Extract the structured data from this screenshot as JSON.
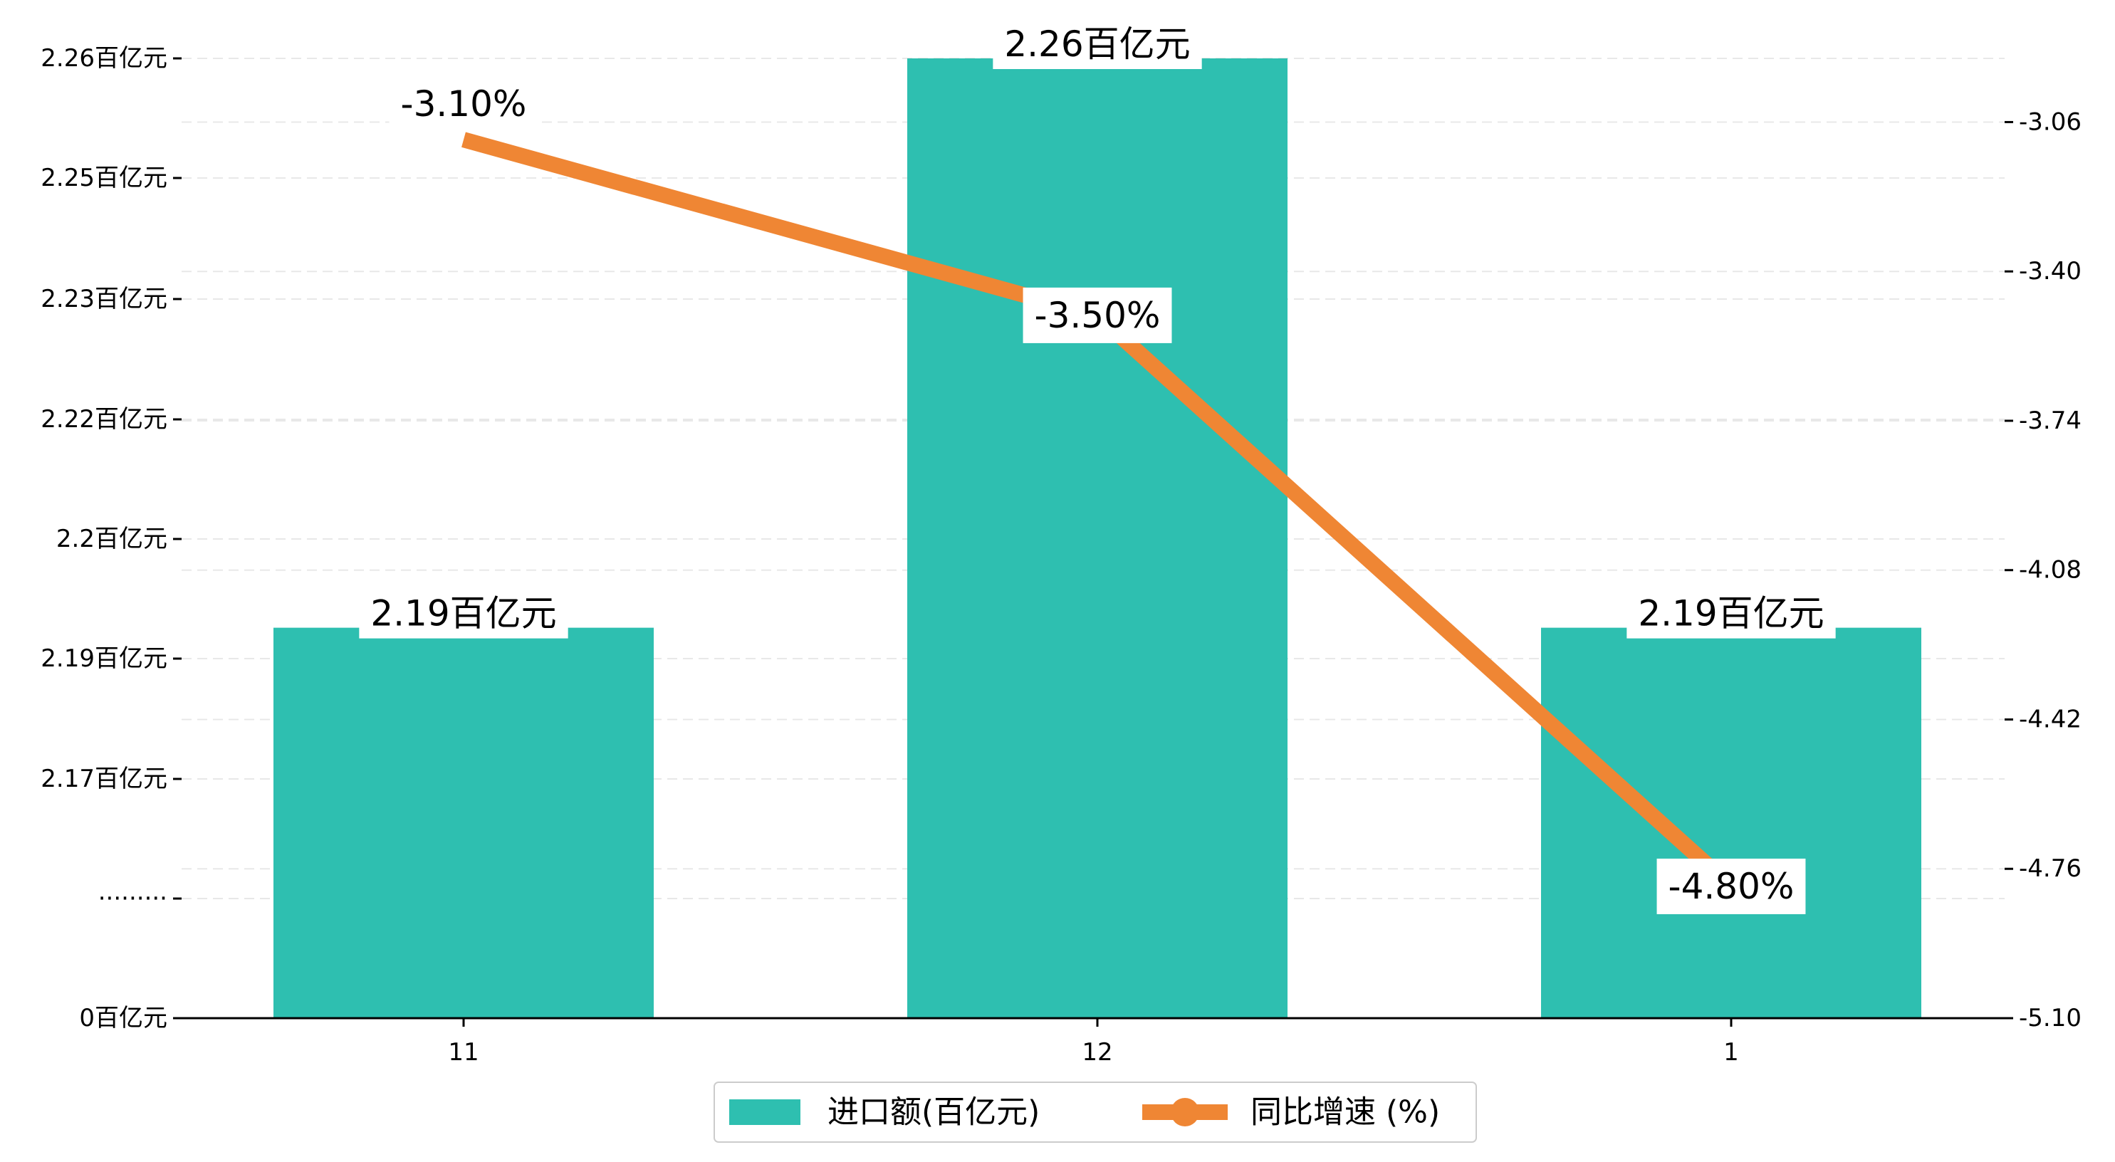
{
  "colors": {
    "bar": "#2ebfb0",
    "line": "#ef8634",
    "grid": "#e8e8e8",
    "axis": "#000000",
    "label_bg": "#ffffff"
  },
  "chart_data": {
    "type": "bar",
    "categories": [
      "11",
      "12",
      "1"
    ],
    "series": [
      {
        "name": "进口额(百亿元)",
        "type": "bar",
        "axis": "left",
        "values": [
          2.19,
          2.26,
          2.19
        ],
        "labels": [
          "2.19百亿元",
          "2.26百亿元",
          "2.19百亿元"
        ]
      },
      {
        "name": "同比增速 (%)",
        "type": "line",
        "axis": "right",
        "values": [
          -3.1,
          -3.5,
          -4.8
        ],
        "labels": [
          "-3.10%",
          "-3.50%",
          "-4.80%"
        ]
      }
    ],
    "left_axis": {
      "tick_labels": [
        "0百亿元",
        "·········",
        "2.17百亿元",
        "2.19百亿元",
        "2.2百亿元",
        "2.22百亿元",
        "2.23百亿元",
        "2.25百亿元",
        "2.26百亿元"
      ],
      "broken": true
    },
    "right_axis": {
      "tick_labels": [
        "-3.06",
        "-3.40",
        "-3.74",
        "-4.08",
        "-4.42",
        "-4.76",
        "-5.10"
      ],
      "tick_values": [
        -3.06,
        -3.4,
        -3.74,
        -4.08,
        -4.42,
        -4.76,
        -5.1
      ]
    },
    "grid": true,
    "legend": "bottom-center"
  }
}
